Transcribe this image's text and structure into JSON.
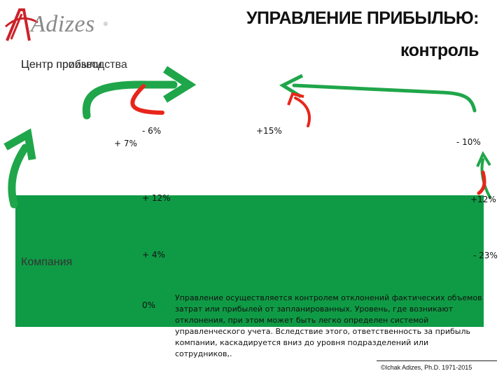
{
  "logo": {
    "text": "Adizes",
    "registered": "®"
  },
  "title": {
    "line1": "УПРАВЛЕНИЕ ПРИБЫЛЬЮ:",
    "line2": "контроль"
  },
  "labels": {
    "center_overlap_a": "Центр прибыли",
    "center_overlap_b": "Центр производства",
    "company": "Компания"
  },
  "percentages": {
    "p_minus6": "- 6%",
    "p_plus7": "+ 7%",
    "p_plus15": "+15%",
    "p_minus10": "- 10%",
    "p_plus12_left": "+ 12%",
    "p_plus12_right": "+12%",
    "p_plus4": "+ 4%",
    "p_minus23": "- 23%",
    "p_zero": "0%"
  },
  "description": "Управление осуществляется контролем отклонений фактических объемов затрат или прибылей от запланированных. Уровень, где возникают отклонения, при этом может быть легко определен системой управленческого учета. Вследствие этого, ответственность за прибыль компании, каскадируется вниз до уровня подразделений или сотрудников,.",
  "copyright": "©Ichak Adizes, Ph.D. 1971-2015",
  "colors": {
    "green": "#0f9b45",
    "arrow_green": "#1fa64a",
    "arrow_red": "#e8251b",
    "logo_red": "#cc2229"
  }
}
